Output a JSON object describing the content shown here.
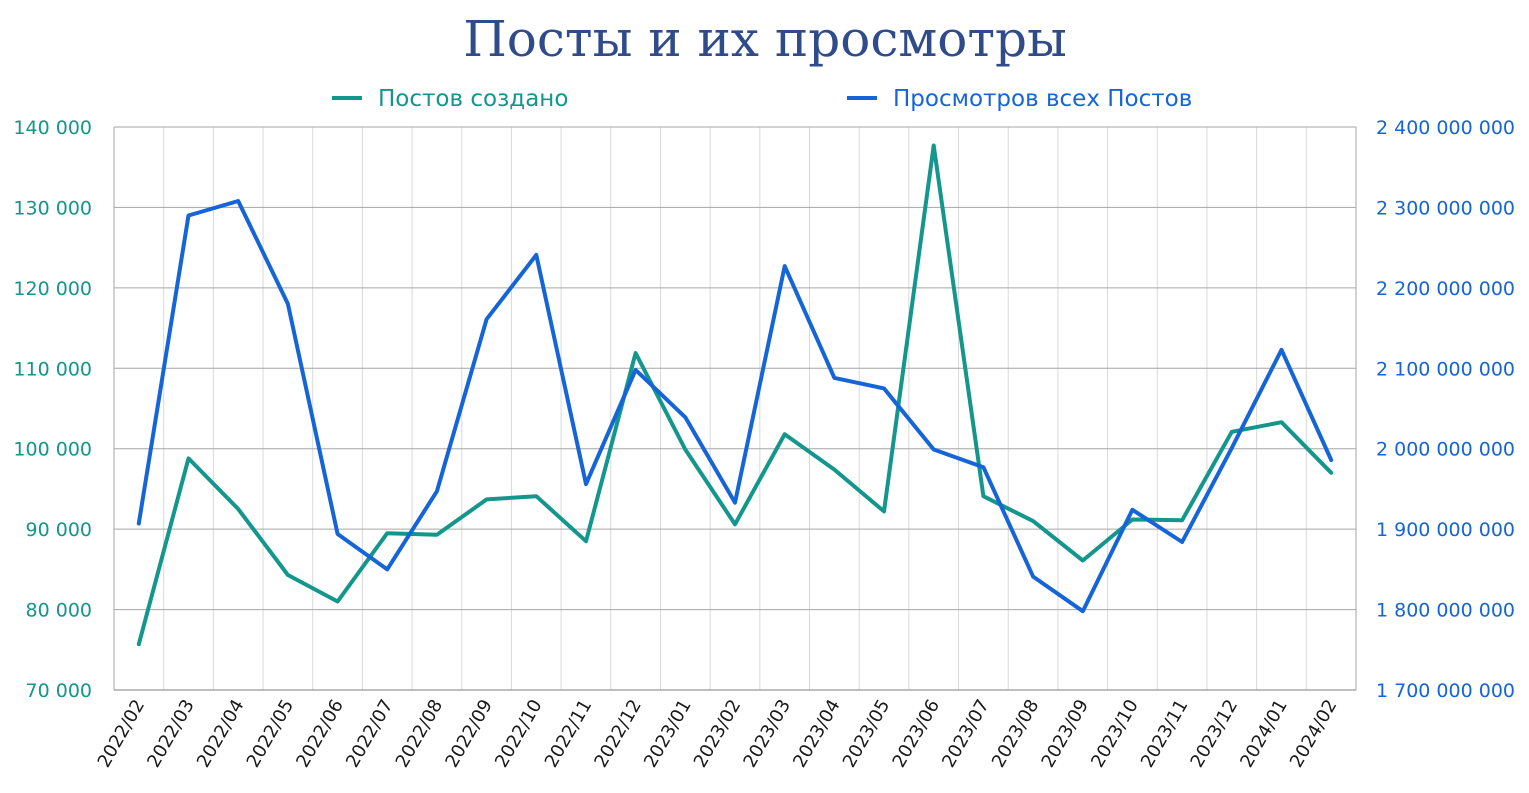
{
  "chart_data": {
    "type": "line",
    "title": "Посты и их просмотры",
    "categories": [
      "2022/02",
      "2022/03",
      "2022/04",
      "2022/05",
      "2022/06",
      "2022/07",
      "2022/08",
      "2022/09",
      "2022/10",
      "2022/11",
      "2022/12",
      "2023/01",
      "2023/02",
      "2023/03",
      "2023/04",
      "2023/05",
      "2023/06",
      "2023/07",
      "2023/08",
      "2023/09",
      "2023/10",
      "2023/11",
      "2023/12",
      "2024/01",
      "2024/02"
    ],
    "legend_position": "top",
    "grid": true,
    "y_left": {
      "ylim": [
        70000,
        140000
      ],
      "ticks": [
        70000,
        80000,
        90000,
        100000,
        110000,
        120000,
        130000,
        140000
      ],
      "tick_labels": [
        "70 000",
        "80 000",
        "90 000",
        "100 000",
        "110 000",
        "120 000",
        "130 000",
        "140 000"
      ]
    },
    "y_right": {
      "ylim": [
        1700000000,
        2400000000
      ],
      "ticks": [
        1700000000,
        1800000000,
        1900000000,
        2000000000,
        2100000000,
        2200000000,
        2300000000,
        2400000000
      ],
      "tick_labels": [
        "1 700 000 000",
        "1 800 000 000",
        "1 900 000 000",
        "2 000 000 000",
        "2 100 000 000",
        "2 200 000 000",
        "2 300 000 000",
        "2 400 000 000"
      ]
    },
    "series": [
      {
        "name": "Постов создано",
        "axis": "left",
        "color": "#13968C",
        "values": [
          75700,
          98800,
          92500,
          84300,
          81000,
          89500,
          89300,
          93700,
          94100,
          88500,
          111900,
          99900,
          90600,
          101800,
          97400,
          92200,
          137700,
          94100,
          91000,
          86100,
          91200,
          91100,
          102100,
          103300,
          97000
        ]
      },
      {
        "name": "Просмотров всех Постов",
        "axis": "right",
        "color": "#1565D8",
        "values": [
          1907000000,
          2290000000,
          2308000000,
          2180000000,
          1894000000,
          1850000000,
          1947000000,
          2161000000,
          2241000000,
          1956000000,
          2098000000,
          2039000000,
          1933000000,
          2227000000,
          2088000000,
          2075000000,
          1999000000,
          1977000000,
          1841000000,
          1798000000,
          1924000000,
          1884000000,
          2001000000,
          2123000000,
          1986000000
        ]
      }
    ]
  }
}
